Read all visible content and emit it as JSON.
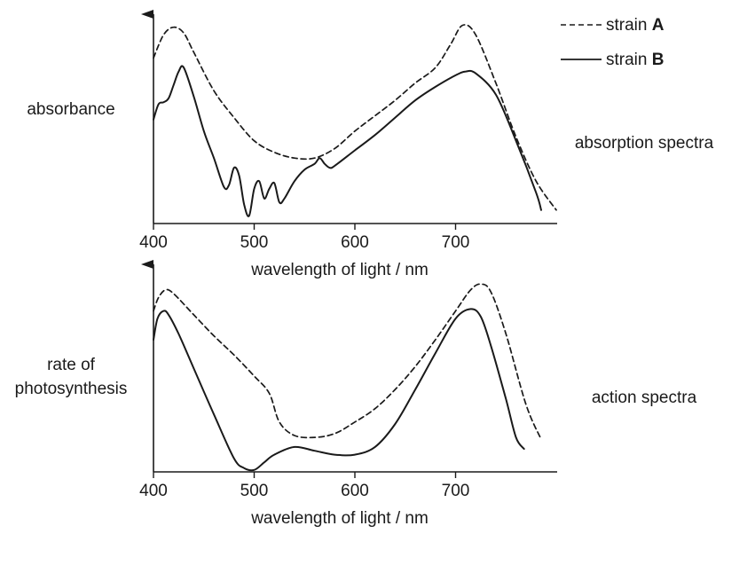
{
  "legend": {
    "items": [
      {
        "prefix": "strain ",
        "letter": "A",
        "style": "dashed"
      },
      {
        "prefix": "strain ",
        "letter": "B",
        "style": "solid"
      }
    ]
  },
  "chart_data": [
    {
      "type": "line",
      "title": "absorption spectra",
      "ylabel": "absorbance",
      "xlabel": "wavelength of light / nm",
      "xticks": [
        400,
        500,
        600,
        700
      ],
      "xlim": [
        400,
        800
      ],
      "ylim": [
        0,
        1
      ],
      "series": [
        {
          "name": "strain A",
          "style": "dashed",
          "x": [
            400,
            410,
            420,
            430,
            440,
            460,
            480,
            500,
            520,
            540,
            560,
            580,
            600,
            620,
            640,
            660,
            680,
            695,
            707,
            720,
            740,
            760,
            780,
            800
          ],
          "y": [
            0.86,
            0.98,
            1.02,
            0.99,
            0.89,
            0.69,
            0.55,
            0.43,
            0.37,
            0.34,
            0.34,
            0.39,
            0.48,
            0.56,
            0.64,
            0.73,
            0.81,
            0.93,
            1.03,
            0.98,
            0.73,
            0.45,
            0.22,
            0.07
          ]
        },
        {
          "name": "strain B",
          "style": "solid",
          "x": [
            400,
            405,
            410,
            415,
            420,
            425,
            430,
            440,
            450,
            460,
            470,
            475,
            480,
            485,
            490,
            495,
            500,
            505,
            510,
            515,
            520,
            525,
            530,
            540,
            550,
            560,
            565,
            570,
            575,
            580,
            600,
            620,
            640,
            660,
            680,
            700,
            710,
            720,
            740,
            760,
            780,
            785
          ],
          "y": [
            0.54,
            0.62,
            0.63,
            0.65,
            0.72,
            0.79,
            0.81,
            0.66,
            0.48,
            0.34,
            0.19,
            0.2,
            0.29,
            0.25,
            0.1,
            0.04,
            0.18,
            0.22,
            0.13,
            0.18,
            0.21,
            0.11,
            0.13,
            0.22,
            0.28,
            0.31,
            0.34,
            0.31,
            0.29,
            0.3,
            0.38,
            0.46,
            0.55,
            0.64,
            0.71,
            0.77,
            0.79,
            0.78,
            0.67,
            0.43,
            0.16,
            0.07
          ]
        }
      ]
    },
    {
      "type": "line",
      "title": "action spectra",
      "ylabel": "rate of photosynthesis",
      "xlabel": "wavelength of light / nm",
      "xticks": [
        400,
        500,
        600,
        700
      ],
      "xlim": [
        400,
        800
      ],
      "ylim": [
        0,
        1
      ],
      "series": [
        {
          "name": "strain A",
          "style": "dashed",
          "x": [
            400,
            405,
            412,
            420,
            440,
            460,
            480,
            500,
            515,
            525,
            540,
            560,
            580,
            600,
            620,
            640,
            660,
            680,
            700,
            715,
            725,
            735,
            750,
            770,
            785
          ],
          "y": [
            0.84,
            0.91,
            0.95,
            0.93,
            0.82,
            0.71,
            0.61,
            0.5,
            0.41,
            0.26,
            0.19,
            0.18,
            0.2,
            0.26,
            0.33,
            0.43,
            0.55,
            0.69,
            0.84,
            0.95,
            0.98,
            0.94,
            0.72,
            0.35,
            0.17
          ]
        },
        {
          "name": "strain B",
          "style": "solid",
          "x": [
            400,
            404,
            410,
            415,
            425,
            440,
            460,
            480,
            490,
            500,
            510,
            520,
            540,
            560,
            580,
            600,
            620,
            640,
            660,
            680,
            700,
            715,
            725,
            735,
            750,
            760,
            768
          ],
          "y": [
            0.69,
            0.8,
            0.84,
            0.82,
            0.72,
            0.54,
            0.3,
            0.07,
            0.02,
            0.01,
            0.05,
            0.09,
            0.13,
            0.11,
            0.09,
            0.09,
            0.13,
            0.25,
            0.43,
            0.62,
            0.8,
            0.85,
            0.81,
            0.66,
            0.38,
            0.18,
            0.12
          ]
        }
      ]
    }
  ]
}
